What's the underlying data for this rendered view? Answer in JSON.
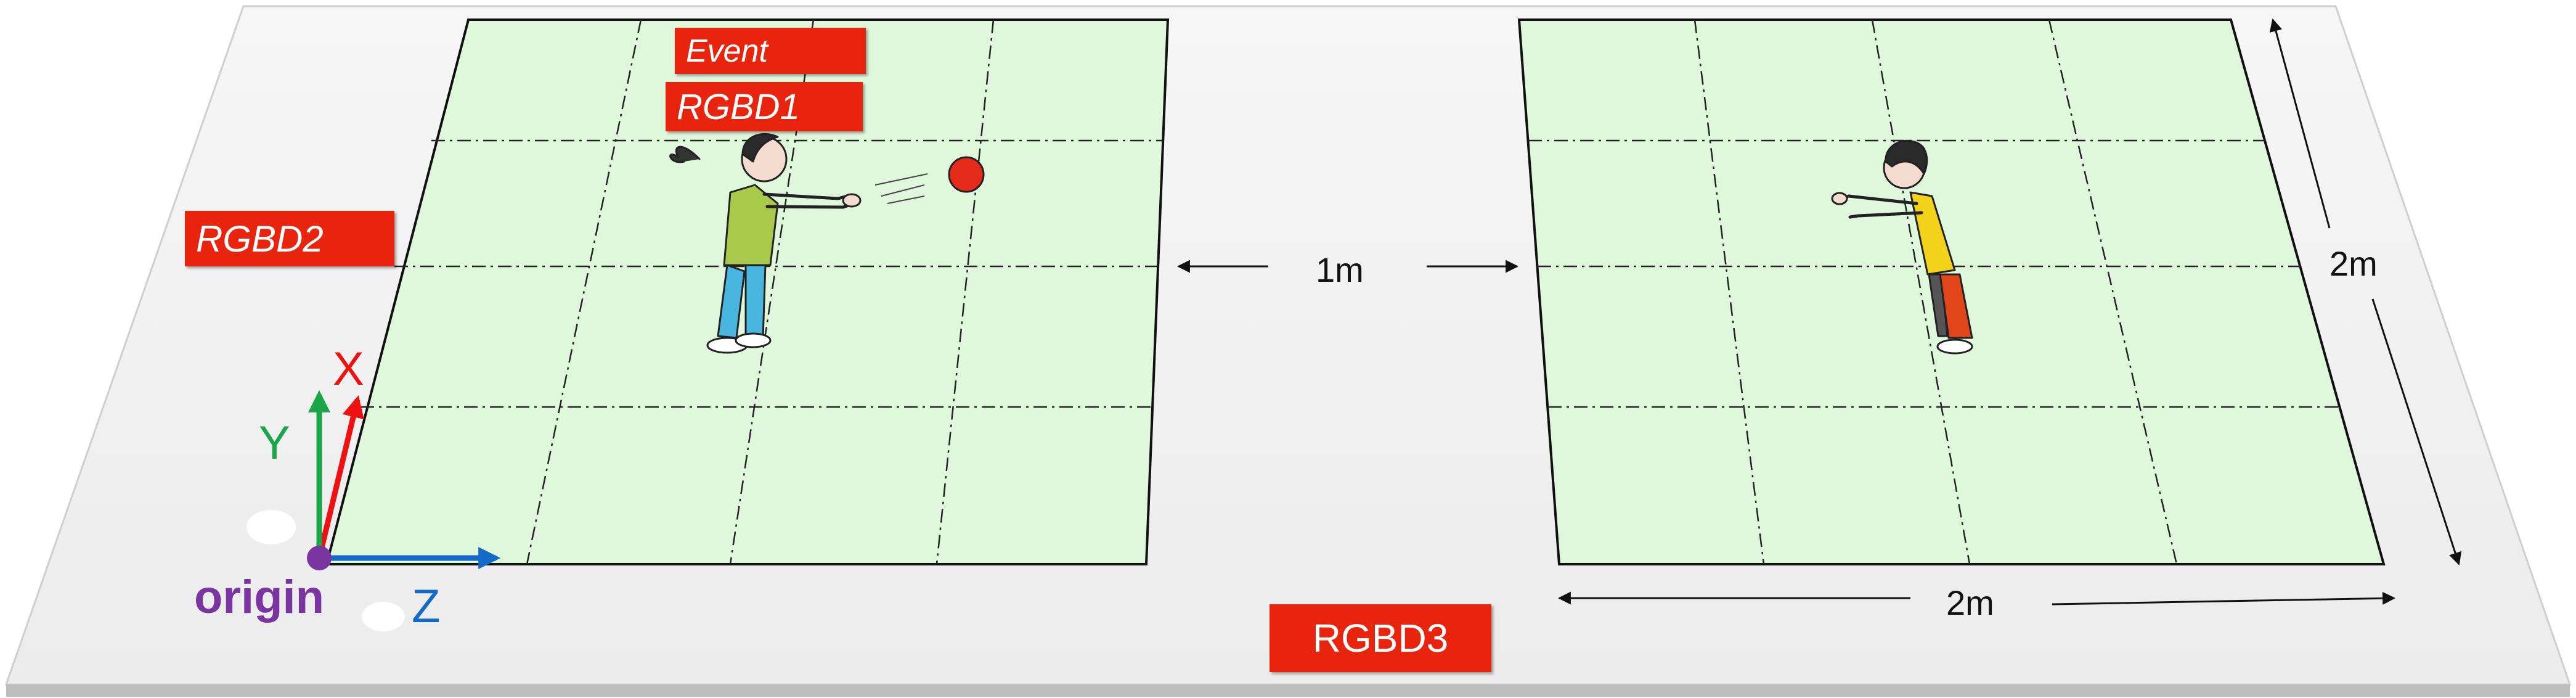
{
  "labels": {
    "event": "Event",
    "rgbd1": "RGBD1",
    "rgbd2": "RGBD2",
    "rgbd3": "RGBD3",
    "distance_between": "1m",
    "width": "2m",
    "depth": "2m"
  },
  "axes": {
    "x": "X",
    "y": "Y",
    "z": "Z",
    "origin": "origin"
  },
  "colors": {
    "tag_red": "#e8230e",
    "court_green": "#dff8dc",
    "axis_x": "#ee1111",
    "axis_y": "#1aa548",
    "axis_z": "#1569c7",
    "origin_purple": "#7a35a0"
  }
}
